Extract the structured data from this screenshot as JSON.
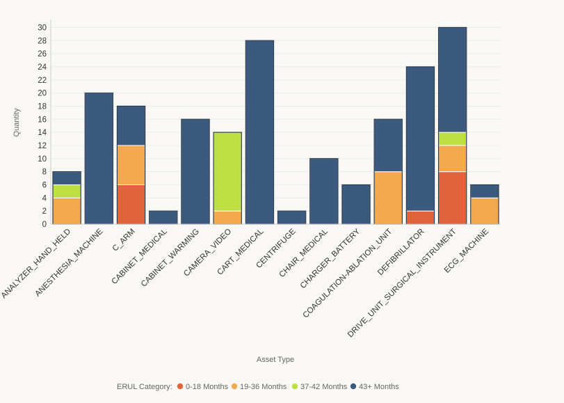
{
  "chart_data": {
    "type": "bar",
    "stacked": true,
    "xlabel": "Asset Type",
    "ylabel": "Quantity",
    "ylim": [
      0,
      31
    ],
    "yticks": [
      0,
      2,
      4,
      6,
      8,
      10,
      12,
      14,
      16,
      18,
      20,
      22,
      24,
      26,
      28,
      30
    ],
    "grid": true,
    "legend": {
      "title": "ERUL Category:",
      "position": "bottom-center"
    },
    "categories": [
      "ANALYZER_HAND_HELD",
      "ANESTHESIA_MACHINE",
      "C_ARM",
      "CABINET_MEDICAL",
      "CABINET_WARMING",
      "CAMERA_VIDEO",
      "CART_MEDICAL",
      "CENTRIFUGE",
      "CHAIR_MEDICAL",
      "CHARGER_BATTERY",
      "COAGULATION-ABLATION_UNIT",
      "DEFIBRILLATOR",
      "DRIVE_UNIT_SURGICAL_INSTRUMENT",
      "ECG_MACHINE"
    ],
    "series": [
      {
        "name": "0-18 Months",
        "color": "#e0633a",
        "values": [
          0,
          0,
          6,
          0,
          0,
          0,
          0,
          0,
          0,
          0,
          0,
          2,
          8,
          0
        ]
      },
      {
        "name": "19-36 Months",
        "color": "#f4a94e",
        "values": [
          4,
          0,
          6,
          0,
          0,
          2,
          0,
          0,
          0,
          0,
          8,
          0,
          4,
          4
        ]
      },
      {
        "name": "37-42 Months",
        "color": "#bfe043",
        "values": [
          2,
          0,
          0,
          0,
          0,
          12,
          0,
          0,
          0,
          0,
          0,
          0,
          2,
          0
        ]
      },
      {
        "name": "43+ Months",
        "color": "#3b5a7e",
        "values": [
          2,
          20,
          6,
          2,
          16,
          0,
          28,
          2,
          10,
          6,
          8,
          22,
          16,
          2
        ]
      }
    ]
  }
}
